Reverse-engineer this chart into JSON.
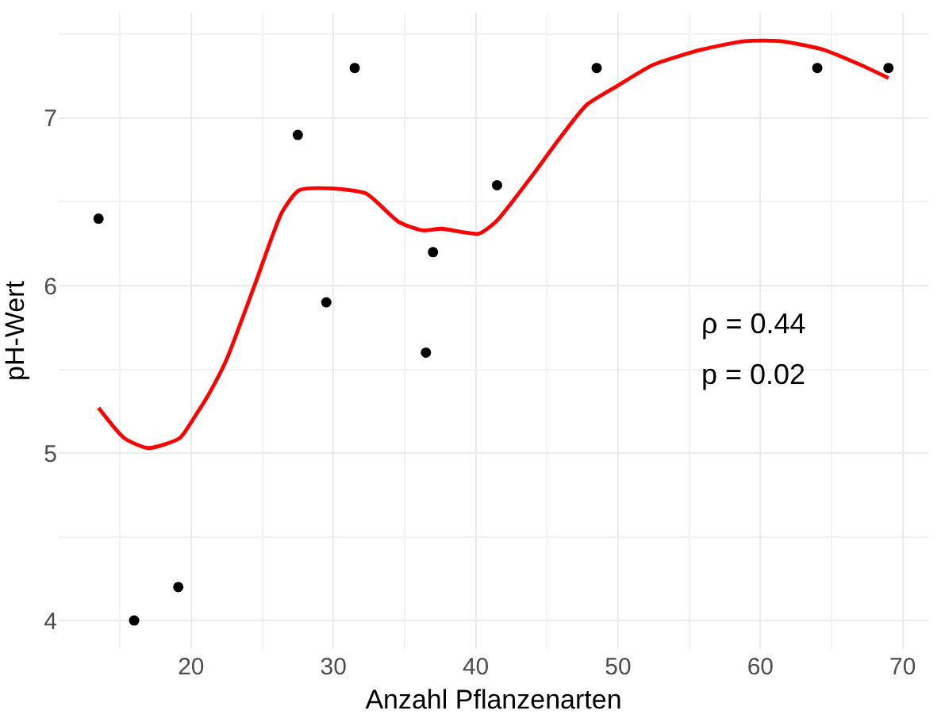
{
  "chart_data": {
    "type": "scatter",
    "xlabel": "Anzahl Pflanzenarten",
    "ylabel": "pH-Wert",
    "xlim": [
      10.7,
      71.8
    ],
    "ylim": [
      3.83,
      7.63
    ],
    "xticks": [
      20,
      30,
      40,
      50,
      60,
      70
    ],
    "yticks": [
      4,
      5,
      6,
      7
    ],
    "grid": true,
    "annotations": [
      "ρ = 0.44",
      "p = 0.02"
    ],
    "series": [
      {
        "color": "#000000",
        "marker": "circle",
        "x": [
          13.5,
          16.0,
          19.1,
          27.5,
          29.5,
          31.5,
          36.5,
          37.0,
          41.5,
          48.5,
          64.0,
          69.0
        ],
        "values": [
          6.4,
          4.0,
          4.2,
          6.9,
          5.9,
          7.3,
          5.6,
          6.2,
          6.6,
          7.3,
          7.3,
          7.3
        ]
      },
      {
        "type": "line",
        "color": "#ff0000",
        "marker": "none",
        "line_style": "solid",
        "x": [
          13.5,
          15.3,
          17.0,
          19.2,
          20.2,
          21.3,
          22.5,
          24.5,
          26.4,
          27.6,
          30.0,
          32.3,
          34.6,
          36.3,
          37.6,
          40.2,
          41.4,
          44.0,
          45.9,
          47.8,
          49.9,
          52.5,
          55.9,
          58.9,
          61.4,
          64.4,
          67.0,
          69.0
        ],
        "values": [
          5.27,
          5.09,
          5.03,
          5.09,
          5.21,
          5.36,
          5.56,
          6.01,
          6.44,
          6.57,
          6.58,
          6.55,
          6.38,
          6.33,
          6.34,
          6.31,
          6.38,
          6.66,
          6.88,
          7.08,
          7.19,
          7.32,
          7.41,
          7.46,
          7.46,
          7.41,
          7.32,
          7.24
        ]
      }
    ]
  }
}
